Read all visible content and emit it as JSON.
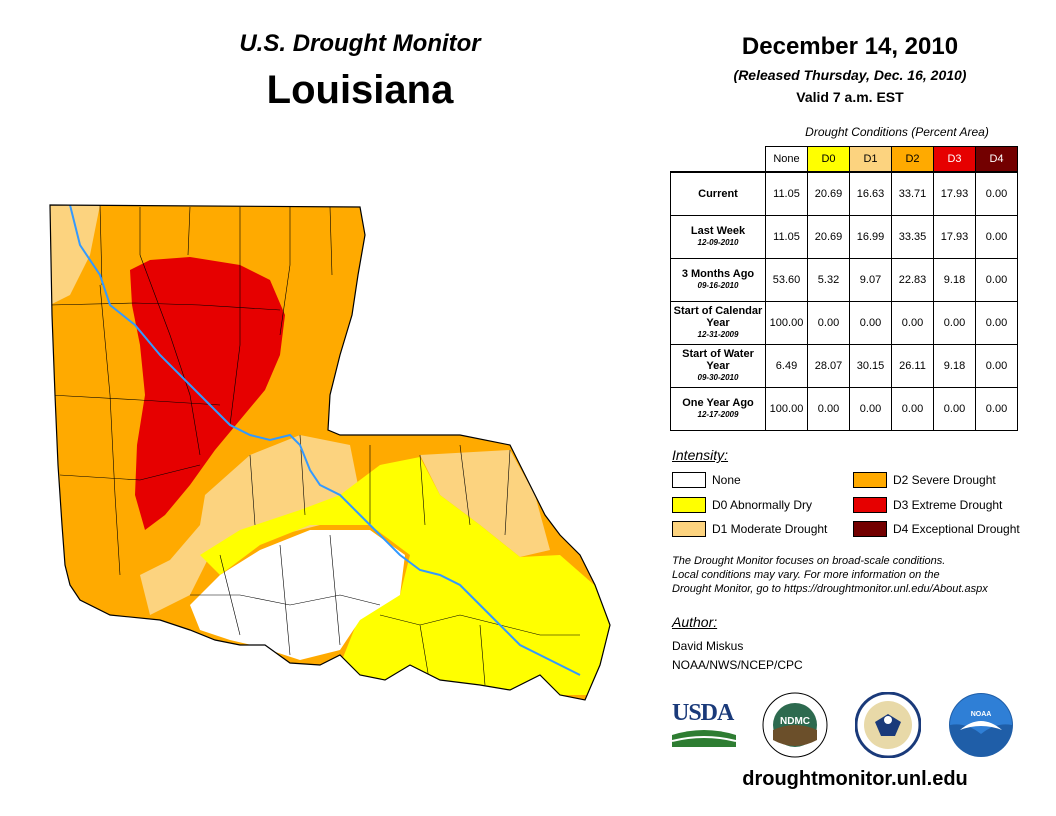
{
  "header": {
    "subtitle": "U.S. Drought Monitor",
    "state": "Louisiana",
    "date": "December 14, 2010",
    "released": "(Released Thursday, Dec. 16, 2010)",
    "valid": "Valid 7 a.m. EST"
  },
  "table": {
    "caption": "Drought Conditions (Percent Area)",
    "columns": [
      {
        "label": "None",
        "color": "#ffffff",
        "text": "#000000"
      },
      {
        "label": "D0",
        "color": "#ffff00",
        "text": "#000000"
      },
      {
        "label": "D1",
        "color": "#fcd37f",
        "text": "#000000"
      },
      {
        "label": "D2",
        "color": "#ffaa00",
        "text": "#000000"
      },
      {
        "label": "D3",
        "color": "#e60000",
        "text": "#ffffff"
      },
      {
        "label": "D4",
        "color": "#730000",
        "text": "#ffffff"
      }
    ],
    "rows": [
      {
        "label": "Current",
        "date": "",
        "values": [
          "11.05",
          "20.69",
          "16.63",
          "33.71",
          "17.93",
          "0.00"
        ]
      },
      {
        "label": "Last Week",
        "date": "12-09-2010",
        "values": [
          "11.05",
          "20.69",
          "16.99",
          "33.35",
          "17.93",
          "0.00"
        ]
      },
      {
        "label": "3 Months Ago",
        "date": "09-16-2010",
        "values": [
          "53.60",
          "5.32",
          "9.07",
          "22.83",
          "9.18",
          "0.00"
        ]
      },
      {
        "label": "Start of Calendar Year",
        "date": "12-31-2009",
        "values": [
          "100.00",
          "0.00",
          "0.00",
          "0.00",
          "0.00",
          "0.00"
        ]
      },
      {
        "label": "Start of Water Year",
        "date": "09-30-2010",
        "values": [
          "6.49",
          "28.07",
          "30.15",
          "26.11",
          "9.18",
          "0.00"
        ]
      },
      {
        "label": "One Year Ago",
        "date": "12-17-2009",
        "values": [
          "100.00",
          "0.00",
          "0.00",
          "0.00",
          "0.00",
          "0.00"
        ]
      }
    ]
  },
  "legend": {
    "title": "Intensity:",
    "items": [
      {
        "label": "None",
        "color": "#ffffff"
      },
      {
        "label": "D0 Abnormally Dry",
        "color": "#ffff00"
      },
      {
        "label": "D1 Moderate Drought",
        "color": "#fcd37f"
      },
      {
        "label": "D2 Severe Drought",
        "color": "#ffaa00"
      },
      {
        "label": "D3 Extreme Drought",
        "color": "#e60000"
      },
      {
        "label": "D4 Exceptional Drought",
        "color": "#730000"
      }
    ]
  },
  "note": {
    "line1": "The Drought Monitor focuses on broad-scale conditions.",
    "line2": "Local conditions may vary. For more information on the",
    "line3": "Drought Monitor, go to https://droughtmonitor.unl.edu/About.aspx"
  },
  "author": {
    "title": "Author:",
    "name": "David Miskus",
    "org": "NOAA/NWS/NCEP/CPC"
  },
  "logos": {
    "usda": "USDA",
    "ndmc": "NDMC",
    "noaa": "NOAA"
  },
  "footer": {
    "url": "droughtmonitor.unl.edu"
  },
  "map": {
    "colors": {
      "none": "#ffffff",
      "d0": "#ffff00",
      "d1": "#fcd37f",
      "d2": "#ffaa00",
      "d3": "#e60000",
      "river": "#3399ff"
    }
  }
}
